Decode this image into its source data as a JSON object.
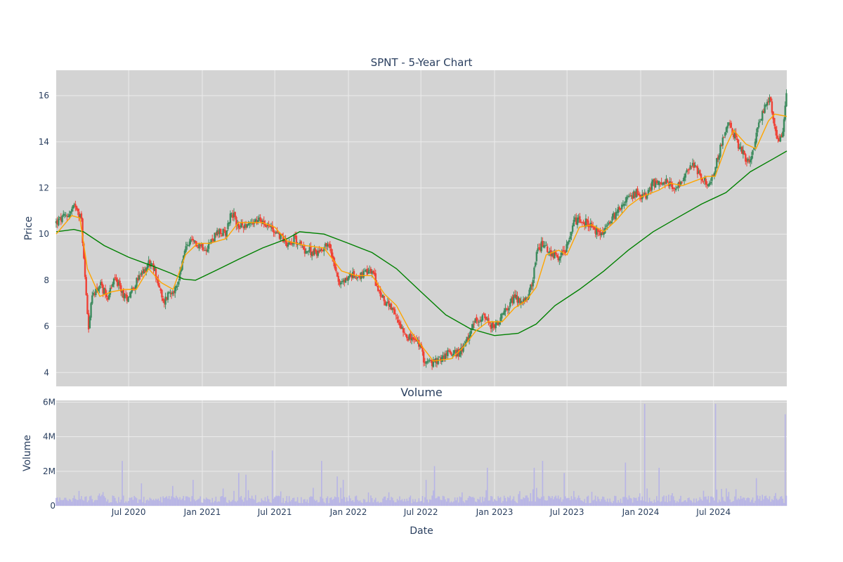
{
  "chart_data": [
    {
      "type": "candlestick",
      "title": "SPNT - 5-Year Chart",
      "xlabel": "",
      "ylabel": "Price",
      "ylim": [
        3.4,
        17.1
      ],
      "xlim": [
        "2020-01-02",
        "2024-12-31"
      ],
      "yticks": [
        4,
        6,
        8,
        10,
        12,
        14,
        16
      ],
      "colors": {
        "up": "#3d8b5e",
        "down": "#ef4136",
        "ma_short": "#ffa500",
        "ma_long": "#008000",
        "background": "#d3d3d3",
        "grid": "#ebebeb"
      },
      "grid": true,
      "legend": "none",
      "price_path": [
        [
          "2020-01-02",
          10.5
        ],
        [
          "2020-02-05",
          10.9
        ],
        [
          "2020-02-20",
          11.3
        ],
        [
          "2020-03-05",
          10.6
        ],
        [
          "2020-03-12",
          8.6
        ],
        [
          "2020-03-23",
          6.0
        ],
        [
          "2020-04-02",
          7.4
        ],
        [
          "2020-04-20",
          7.8
        ],
        [
          "2020-05-10",
          7.3
        ],
        [
          "2020-05-28",
          8.1
        ],
        [
          "2020-06-10",
          7.6
        ],
        [
          "2020-06-25",
          7.2
        ],
        [
          "2020-07-15",
          7.8
        ],
        [
          "2020-08-05",
          8.3
        ],
        [
          "2020-08-20",
          8.8
        ],
        [
          "2020-09-05",
          8.4
        ],
        [
          "2020-09-25",
          7.0
        ],
        [
          "2020-10-10",
          7.5
        ],
        [
          "2020-10-30",
          7.7
        ],
        [
          "2020-11-10",
          8.7
        ],
        [
          "2020-11-25",
          9.6
        ],
        [
          "2020-12-20",
          9.6
        ],
        [
          "2021-01-10",
          9.4
        ],
        [
          "2021-02-05",
          10.0
        ],
        [
          "2021-03-01",
          10.1
        ],
        [
          "2021-03-15",
          11.0
        ],
        [
          "2021-04-01",
          10.3
        ],
        [
          "2021-05-01",
          10.5
        ],
        [
          "2021-06-01",
          10.6
        ],
        [
          "2021-06-20",
          10.3
        ],
        [
          "2021-07-10",
          10.0
        ],
        [
          "2021-08-01",
          9.6
        ],
        [
          "2021-08-20",
          9.8
        ],
        [
          "2021-09-15",
          9.3
        ],
        [
          "2021-10-15",
          9.2
        ],
        [
          "2021-11-10",
          9.6
        ],
        [
          "2021-11-25",
          8.9
        ],
        [
          "2021-12-10",
          7.8
        ],
        [
          "2022-01-05",
          8.2
        ],
        [
          "2022-02-01",
          8.2
        ],
        [
          "2022-03-01",
          8.4
        ],
        [
          "2022-03-20",
          7.4
        ],
        [
          "2022-04-15",
          6.8
        ],
        [
          "2022-05-10",
          6.1
        ],
        [
          "2022-06-01",
          5.5
        ],
        [
          "2022-06-25",
          5.3
        ],
        [
          "2022-07-10",
          4.5
        ],
        [
          "2022-08-01",
          4.4
        ],
        [
          "2022-08-20",
          4.6
        ],
        [
          "2022-09-10",
          4.9
        ],
        [
          "2022-10-01",
          4.8
        ],
        [
          "2022-10-20",
          5.2
        ],
        [
          "2022-11-10",
          6.1
        ],
        [
          "2022-12-01",
          6.5
        ],
        [
          "2022-12-20",
          6.0
        ],
        [
          "2023-01-10",
          6.1
        ],
        [
          "2023-02-01",
          6.8
        ],
        [
          "2023-02-20",
          7.3
        ],
        [
          "2023-03-10",
          7.0
        ],
        [
          "2023-03-25",
          7.2
        ],
        [
          "2023-04-05",
          7.9
        ],
        [
          "2023-04-15",
          9.2
        ],
        [
          "2023-05-01",
          9.6
        ],
        [
          "2023-05-20",
          9.2
        ],
        [
          "2023-06-10",
          9.0
        ],
        [
          "2023-06-25",
          9.2
        ],
        [
          "2023-07-20",
          10.6
        ],
        [
          "2023-08-20",
          10.5
        ],
        [
          "2023-09-05",
          10.2
        ],
        [
          "2023-09-25",
          10.0
        ],
        [
          "2023-10-20",
          10.6
        ],
        [
          "2023-11-10",
          11.2
        ],
        [
          "2023-12-01",
          11.5
        ],
        [
          "2023-12-20",
          11.8
        ],
        [
          "2024-01-10",
          11.6
        ],
        [
          "2024-02-01",
          12.2
        ],
        [
          "2024-03-01",
          12.3
        ],
        [
          "2024-04-01",
          12.0
        ],
        [
          "2024-04-20",
          12.6
        ],
        [
          "2024-05-10",
          13.0
        ],
        [
          "2024-06-01",
          12.4
        ],
        [
          "2024-06-20",
          12.1
        ],
        [
          "2024-07-10",
          13.2
        ],
        [
          "2024-07-25",
          14.2
        ],
        [
          "2024-08-10",
          14.9
        ],
        [
          "2024-08-25",
          14.1
        ],
        [
          "2024-09-10",
          13.6
        ],
        [
          "2024-09-25",
          13.1
        ],
        [
          "2024-10-10",
          13.8
        ],
        [
          "2024-10-25",
          15.0
        ],
        [
          "2024-11-10",
          15.6
        ],
        [
          "2024-11-20",
          15.9
        ],
        [
          "2024-12-01",
          14.6
        ],
        [
          "2024-12-10",
          14.0
        ],
        [
          "2024-12-20",
          14.4
        ],
        [
          "2024-12-31",
          16.4
        ]
      ],
      "ma_short_path": [
        [
          "2020-01-02",
          10.0
        ],
        [
          "2020-02-10",
          10.8
        ],
        [
          "2020-03-01",
          10.7
        ],
        [
          "2020-03-20",
          8.5
        ],
        [
          "2020-04-20",
          7.3
        ],
        [
          "2020-05-20",
          7.5
        ],
        [
          "2020-06-20",
          7.6
        ],
        [
          "2020-07-20",
          7.6
        ],
        [
          "2020-08-20",
          8.5
        ],
        [
          "2020-09-20",
          7.9
        ],
        [
          "2020-10-20",
          7.6
        ],
        [
          "2020-11-20",
          9.1
        ],
        [
          "2020-12-20",
          9.6
        ],
        [
          "2021-01-20",
          9.6
        ],
        [
          "2021-03-01",
          9.8
        ],
        [
          "2021-04-01",
          10.5
        ],
        [
          "2021-06-01",
          10.5
        ],
        [
          "2021-07-01",
          10.3
        ],
        [
          "2021-08-01",
          9.7
        ],
        [
          "2021-09-15",
          9.5
        ],
        [
          "2021-11-01",
          9.4
        ],
        [
          "2021-12-15",
          8.4
        ],
        [
          "2022-01-20",
          8.2
        ],
        [
          "2022-03-01",
          8.2
        ],
        [
          "2022-04-01",
          7.4
        ],
        [
          "2022-05-01",
          6.9
        ],
        [
          "2022-06-01",
          5.9
        ],
        [
          "2022-07-01",
          5.2
        ],
        [
          "2022-08-01",
          4.5
        ],
        [
          "2022-09-15",
          4.6
        ],
        [
          "2022-10-15",
          5.1
        ],
        [
          "2022-11-15",
          5.8
        ],
        [
          "2022-12-15",
          6.2
        ],
        [
          "2023-01-20",
          6.2
        ],
        [
          "2023-02-20",
          6.8
        ],
        [
          "2023-03-20",
          7.1
        ],
        [
          "2023-04-15",
          7.7
        ],
        [
          "2023-05-10",
          9.1
        ],
        [
          "2023-06-10",
          9.3
        ],
        [
          "2023-07-01",
          9.1
        ],
        [
          "2023-08-01",
          10.3
        ],
        [
          "2023-09-01",
          10.4
        ],
        [
          "2023-10-01",
          10.1
        ],
        [
          "2023-11-01",
          10.6
        ],
        [
          "2023-12-01",
          11.2
        ],
        [
          "2024-01-01",
          11.6
        ],
        [
          "2024-02-15",
          11.9
        ],
        [
          "2024-03-15",
          12.2
        ],
        [
          "2024-04-15",
          12.1
        ],
        [
          "2024-05-15",
          12.3
        ],
        [
          "2024-06-15",
          12.5
        ],
        [
          "2024-07-05",
          12.5
        ],
        [
          "2024-08-01",
          13.8
        ],
        [
          "2024-08-20",
          14.5
        ],
        [
          "2024-09-20",
          13.9
        ],
        [
          "2024-10-15",
          13.7
        ],
        [
          "2024-11-15",
          14.9
        ],
        [
          "2024-12-01",
          15.2
        ],
        [
          "2024-12-31",
          15.1
        ]
      ],
      "ma_long_path": [
        [
          "2020-01-02",
          10.1
        ],
        [
          "2020-02-15",
          10.2
        ],
        [
          "2020-03-10",
          10.1
        ],
        [
          "2020-05-01",
          9.5
        ],
        [
          "2020-07-01",
          9.0
        ],
        [
          "2020-09-01",
          8.6
        ],
        [
          "2020-10-15",
          8.3
        ],
        [
          "2020-11-15",
          8.05
        ],
        [
          "2020-12-15",
          8.0
        ],
        [
          "2021-02-01",
          8.4
        ],
        [
          "2021-04-01",
          8.9
        ],
        [
          "2021-06-01",
          9.4
        ],
        [
          "2021-08-01",
          9.8
        ],
        [
          "2021-09-01",
          10.1
        ],
        [
          "2021-11-01",
          10.0
        ],
        [
          "2022-01-01",
          9.6
        ],
        [
          "2022-03-01",
          9.2
        ],
        [
          "2022-05-01",
          8.5
        ],
        [
          "2022-07-01",
          7.5
        ],
        [
          "2022-09-01",
          6.5
        ],
        [
          "2022-11-01",
          5.9
        ],
        [
          "2023-01-01",
          5.6
        ],
        [
          "2023-03-01",
          5.7
        ],
        [
          "2023-04-15",
          6.1
        ],
        [
          "2023-06-01",
          6.9
        ],
        [
          "2023-08-01",
          7.6
        ],
        [
          "2023-10-01",
          8.4
        ],
        [
          "2023-12-01",
          9.3
        ],
        [
          "2024-02-01",
          10.1
        ],
        [
          "2024-04-01",
          10.7
        ],
        [
          "2024-06-01",
          11.3
        ],
        [
          "2024-08-01",
          11.8
        ],
        [
          "2024-10-01",
          12.7
        ],
        [
          "2024-12-01",
          13.3
        ],
        [
          "2024-12-31",
          13.6
        ]
      ]
    },
    {
      "type": "bar",
      "title": "Volume",
      "xlabel": "Date",
      "ylabel": "Volume",
      "ylim": [
        0,
        6100000
      ],
      "yticks": [
        0,
        2000000,
        4000000,
        6000000
      ],
      "ytick_labels": [
        "0",
        "2M",
        "4M",
        "6M"
      ],
      "xticks": [
        "2020-07-01",
        "2021-01-01",
        "2021-07-01",
        "2022-01-01",
        "2022-07-01",
        "2023-01-01",
        "2023-07-01",
        "2024-01-01",
        "2024-07-01"
      ],
      "xtick_labels": [
        "Jul 2020",
        "Jan 2021",
        "Jul 2021",
        "Jan 2022",
        "Jul 2022",
        "Jan 2023",
        "Jul 2023",
        "Jan 2024",
        "Jul 2024"
      ],
      "color": "#b7b4e6",
      "grid": true,
      "spikes": [
        [
          "2020-06-15",
          2600000
        ],
        [
          "2020-08-01",
          1300000
        ],
        [
          "2020-12-10",
          1500000
        ],
        [
          "2021-04-01",
          1900000
        ],
        [
          "2021-04-20",
          1800000
        ],
        [
          "2021-06-25",
          3200000
        ],
        [
          "2021-10-25",
          2600000
        ],
        [
          "2021-12-05",
          1700000
        ],
        [
          "2021-12-20",
          1500000
        ],
        [
          "2022-07-15",
          1500000
        ],
        [
          "2022-08-05",
          2300000
        ],
        [
          "2022-12-15",
          2200000
        ],
        [
          "2023-04-10",
          2200000
        ],
        [
          "2023-05-01",
          2600000
        ],
        [
          "2023-06-25",
          1900000
        ],
        [
          "2023-11-25",
          2500000
        ],
        [
          "2024-01-10",
          5900000
        ],
        [
          "2024-02-15",
          2200000
        ],
        [
          "2024-07-05",
          5900000
        ],
        [
          "2024-10-15",
          1600000
        ],
        [
          "2024-12-28",
          5300000
        ]
      ]
    }
  ]
}
